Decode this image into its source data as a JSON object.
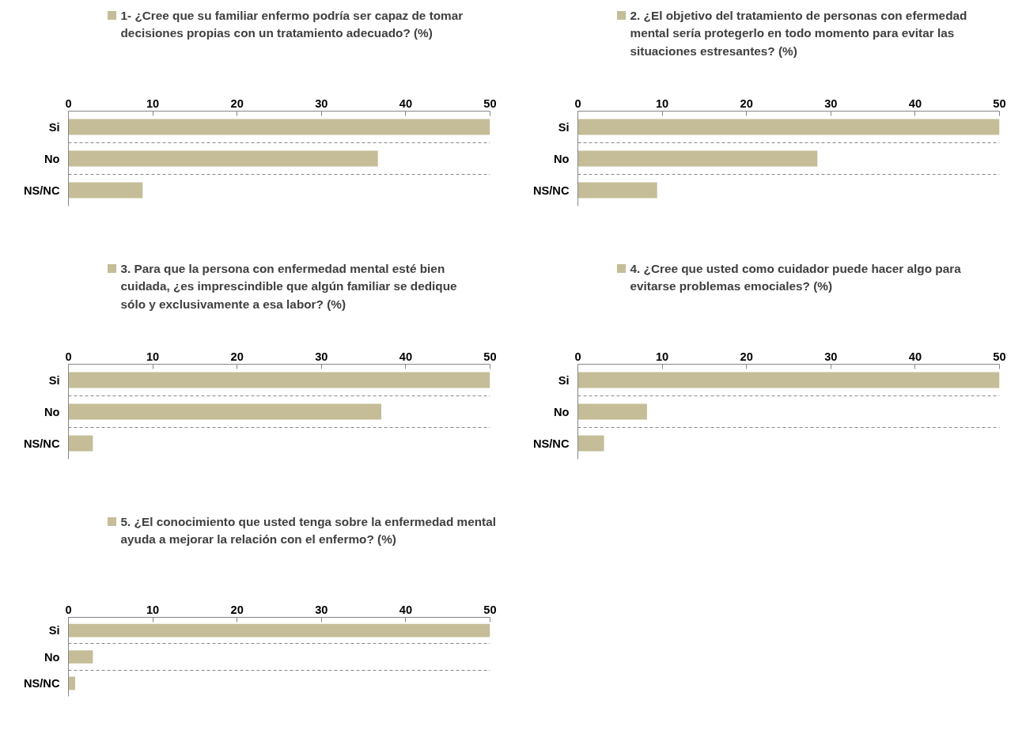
{
  "chart_data": [
    {
      "type": "bar",
      "orientation": "horizontal",
      "categories": [
        "Si",
        "No",
        "NS/NC"
      ],
      "series": [
        {
          "name": "1- ¿Cree que su familiar  enfermo podría ser capaz de tomar decisiones propias con un tratamiento adecuado? (%)",
          "color": "#c4bd97",
          "values": [
            50,
            36.7,
            8.8
          ]
        }
      ],
      "xlim": [
        0,
        50
      ],
      "xticks": [
        0,
        10,
        20,
        30,
        40,
        50
      ],
      "grid": "y",
      "legend": "top"
    },
    {
      "type": "bar",
      "orientation": "horizontal",
      "categories": [
        "Si",
        "No",
        "NS/NC"
      ],
      "series": [
        {
          "name": "2. ¿El objetivo del tratamiento de personas con efermedad mental sería protegerlo en todo momento para evitar las situaciones estresantes? (%)",
          "color": "#c4bd97",
          "values": [
            50,
            28.4,
            9.4
          ]
        }
      ],
      "xlim": [
        0,
        50
      ],
      "xticks": [
        0,
        10,
        20,
        30,
        40,
        50
      ],
      "grid": "y",
      "legend": "top"
    },
    {
      "type": "bar",
      "orientation": "horizontal",
      "categories": [
        "Si",
        "No",
        "NS/NC"
      ],
      "series": [
        {
          "name": "3. Para que la persona con enfermedad mental esté bien cuidada, ¿es imprescindible que algún familiar  se dedique sólo y exclusivamente a esa labor? (%)",
          "color": "#c4bd97",
          "values": [
            50,
            37.1,
            2.9
          ]
        }
      ],
      "xlim": [
        0,
        50
      ],
      "xticks": [
        0,
        10,
        20,
        30,
        40,
        50
      ],
      "grid": "y",
      "legend": "top"
    },
    {
      "type": "bar",
      "orientation": "horizontal",
      "categories": [
        "Si",
        "No",
        "NS/NC"
      ],
      "series": [
        {
          "name": "4. ¿Cree que usted como cuidador puede hacer algo para evitarse problemas emociales? (%)",
          "color": "#c4bd97",
          "values": [
            50,
            8.2,
            3.1
          ]
        }
      ],
      "xlim": [
        0,
        50
      ],
      "xticks": [
        0,
        10,
        20,
        30,
        40,
        50
      ],
      "grid": "y",
      "legend": "top"
    },
    {
      "type": "bar",
      "orientation": "horizontal",
      "categories": [
        "Si",
        "No",
        "NS/NC"
      ],
      "series": [
        {
          "name": "5. ¿El conocimiento que usted tenga sobre la enfermedad mental ayuda a mejorar la relación con el enfermo? (%)",
          "color": "#c4bd97",
          "values": [
            50,
            2.9,
            0.8
          ]
        }
      ],
      "xlim": [
        0,
        50
      ],
      "xticks": [
        0,
        10,
        20,
        30,
        40,
        50
      ],
      "grid": "y",
      "legend": "top"
    }
  ]
}
